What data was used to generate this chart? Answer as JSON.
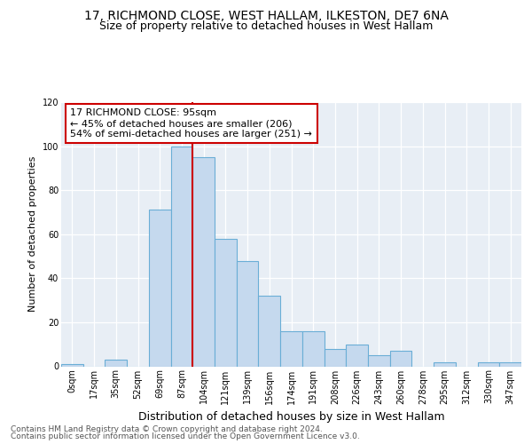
{
  "title1": "17, RICHMOND CLOSE, WEST HALLAM, ILKESTON, DE7 6NA",
  "title2": "Size of property relative to detached houses in West Hallam",
  "xlabel": "Distribution of detached houses by size in West Hallam",
  "ylabel": "Number of detached properties",
  "footnote1": "Contains HM Land Registry data © Crown copyright and database right 2024.",
  "footnote2": "Contains public sector information licensed under the Open Government Licence v3.0.",
  "annotation_line1": "17 RICHMOND CLOSE: 95sqm",
  "annotation_line2": "← 45% of detached houses are smaller (206)",
  "annotation_line3": "54% of semi-detached houses are larger (251) →",
  "categories": [
    "0sqm",
    "17sqm",
    "35sqm",
    "52sqm",
    "69sqm",
    "87sqm",
    "104sqm",
    "121sqm",
    "139sqm",
    "156sqm",
    "174sqm",
    "191sqm",
    "208sqm",
    "226sqm",
    "243sqm",
    "260sqm",
    "278sqm",
    "295sqm",
    "312sqm",
    "330sqm",
    "347sqm"
  ],
  "values": [
    1,
    0,
    3,
    0,
    71,
    100,
    95,
    58,
    48,
    32,
    16,
    16,
    8,
    10,
    5,
    7,
    0,
    2,
    0,
    2,
    2
  ],
  "bar_color": "#c5d9ee",
  "bar_edge_color": "#6aaed6",
  "marker_color": "#cc0000",
  "bg_color": "#ffffff",
  "plot_bg_color": "#e8eef5",
  "ylim": [
    0,
    120
  ],
  "yticks": [
    0,
    20,
    40,
    60,
    80,
    100,
    120
  ],
  "title1_fontsize": 10,
  "title2_fontsize": 9,
  "xlabel_fontsize": 9,
  "ylabel_fontsize": 8,
  "tick_fontsize": 7,
  "footnote_fontsize": 6.5,
  "annotation_fontsize": 8
}
